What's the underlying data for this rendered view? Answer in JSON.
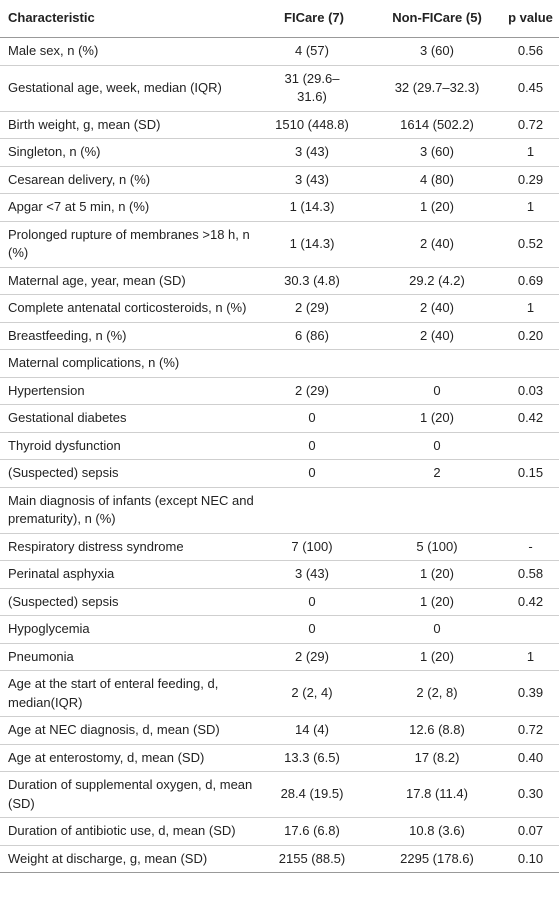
{
  "table": {
    "header": [
      "Characteristic",
      "FICare (7)",
      "Non-FICare (5)",
      "p value"
    ],
    "rows": [
      [
        "Male sex, n (%)",
        "4 (57)",
        "3 (60)",
        "0.56"
      ],
      [
        "Gestational age, week, median (IQR)",
        "31 (29.6–31.6)",
        "32 (29.7–32.3)",
        "0.45"
      ],
      [
        "Birth weight, g, mean (SD)",
        "1510 (448.8)",
        "1614 (502.2)",
        "0.72"
      ],
      [
        "Singleton, n (%)",
        "3 (43)",
        "3 (60)",
        "1"
      ],
      [
        "Cesarean delivery, n (%)",
        "3 (43)",
        "4 (80)",
        "0.29"
      ],
      [
        "Apgar <7 at 5 min, n (%)",
        "1 (14.3)",
        "1 (20)",
        "1"
      ],
      [
        "Prolonged rupture of membranes >18 h, n (%)",
        "1 (14.3)",
        "2 (40)",
        "0.52"
      ],
      [
        "Maternal age, year, mean (SD)",
        "30.3 (4.8)",
        "29.2 (4.2)",
        "0.69"
      ],
      [
        "Complete antenatal corticosteroids, n (%)",
        "2 (29)",
        "2 (40)",
        "1"
      ],
      [
        "Breastfeeding, n (%)",
        "6 (86)",
        "2 (40)",
        "0.20"
      ],
      [
        "Maternal complications, n (%)",
        null,
        null,
        null
      ],
      [
        "Hypertension",
        "2 (29)",
        "0",
        "0.03"
      ],
      [
        "Gestational diabetes",
        "0",
        "1 (20)",
        "0.42"
      ],
      [
        "Thyroid dysfunction",
        "0",
        "0",
        null
      ],
      [
        "(Suspected) sepsis",
        "0",
        "2",
        "0.15"
      ],
      [
        "Main diagnosis of infants (except NEC and prematurity), n (%)",
        null,
        null,
        null
      ],
      [
        "Respiratory distress syndrome",
        "7 (100)",
        "5 (100)",
        "-"
      ],
      [
        "Perinatal asphyxia",
        "3 (43)",
        "1 (20)",
        "0.58"
      ],
      [
        "(Suspected) sepsis",
        "0",
        "1 (20)",
        "0.42"
      ],
      [
        "Hypoglycemia",
        "0",
        "0",
        null
      ],
      [
        "Pneumonia",
        "2 (29)",
        "1 (20)",
        "1"
      ],
      [
        "Age at the start of enteral feeding, d, median(IQR)",
        "2 (2, 4)",
        "2 (2, 8)",
        "0.39"
      ],
      [
        "Age at NEC diagnosis, d, mean (SD)",
        "14 (4)",
        "12.6 (8.8)",
        "0.72"
      ],
      [
        "Age at enterostomy, d, mean (SD)",
        "13.3 (6.5)",
        "17 (8.2)",
        "0.40"
      ],
      [
        "Duration of supplemental oxygen, d, mean (SD)",
        "28.4 (19.5)",
        "17.8 (11.4)",
        "0.30"
      ],
      [
        "Duration of antibiotic use, d, mean (SD)",
        "17.6 (6.8)",
        "10.8 (3.6)",
        "0.07"
      ],
      [
        "Weight at discharge, g, mean (SD)",
        "2155 (88.5)",
        "2295 (178.6)",
        "0.10"
      ]
    ]
  }
}
